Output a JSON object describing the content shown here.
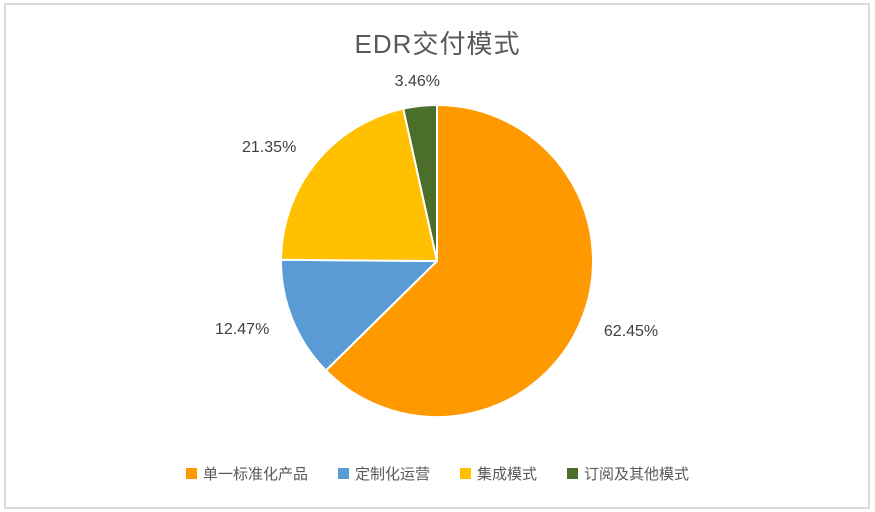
{
  "chart_data": {
    "type": "pie",
    "title": "EDR交付模式",
    "legend": [
      "单一标准化产品",
      "定制化运营",
      "集成模式",
      "订阅及其他模式"
    ],
    "values": [
      62.45,
      12.47,
      21.35,
      3.46
    ],
    "labels": [
      "62.45%",
      "12.47%",
      "21.35%",
      "3.46%"
    ],
    "colors": [
      "#FF9900",
      "#5B9BD5",
      "#FFC000",
      "#4B6E2A"
    ],
    "start_angle_deg": 0,
    "direction": "clockwise",
    "label_position": "outside",
    "legend_position": "bottom"
  },
  "styles": {
    "title_color": "#595959",
    "label_color": "#404040",
    "legend_text_color": "#595959",
    "border_color": "#D9D9D9",
    "background": "#FFFFFF",
    "slice_separator": "#FFFFFF"
  }
}
